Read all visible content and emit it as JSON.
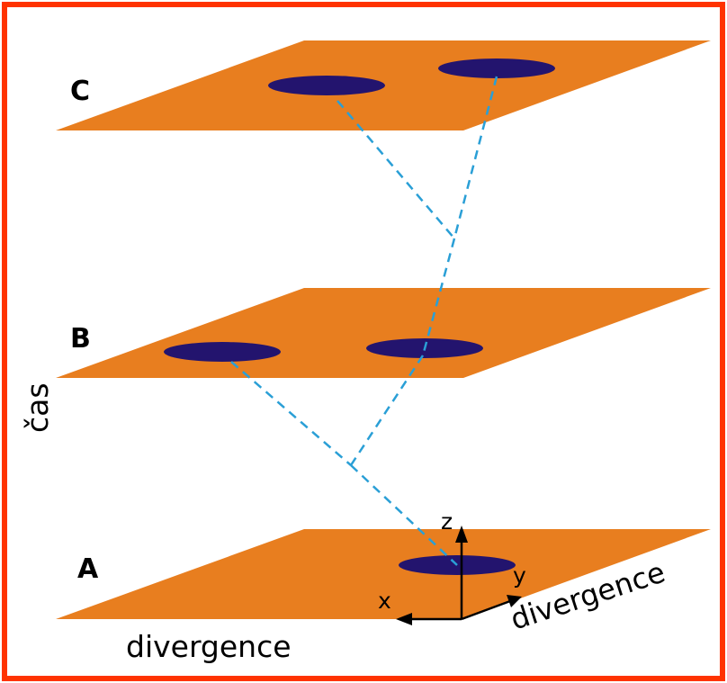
{
  "planes": [
    {
      "label": "C"
    },
    {
      "label": "B"
    },
    {
      "label": "A"
    }
  ],
  "axes": {
    "vertical_label": "čas",
    "x_label": "x",
    "y_label": "y",
    "z_label": "z",
    "horizontal_label": "divergence",
    "depth_label": "divergence"
  },
  "colors": {
    "border": "#ff3300",
    "plane": "#e87e1f",
    "ellipse": "#23146e",
    "path": "#2a9fd6",
    "axis": "#000000"
  }
}
